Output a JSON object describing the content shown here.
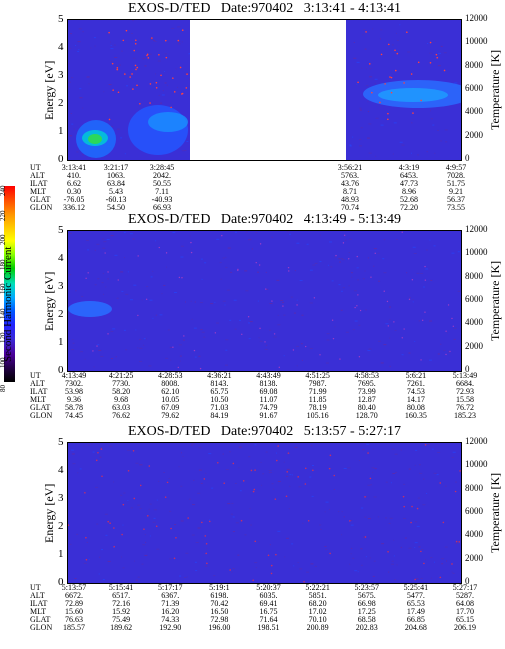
{
  "colorbar": {
    "label": "Second Harmonic Current",
    "ticks": [
      "240",
      "220",
      "200",
      "180",
      "160",
      "140",
      "120",
      "100",
      "80"
    ],
    "colors": [
      "#ff0000",
      "#ff5500",
      "#ff9900",
      "#ffd000",
      "#ffff00",
      "#88ff00",
      "#00cc00",
      "#00ddbb",
      "#00aaff",
      "#0055ff",
      "#2222ff",
      "#3a2ad8",
      "#4b0099",
      "#220044",
      "#000000"
    ]
  },
  "panels": [
    {
      "title": "EXOS-D/TED   Date:970402   3:13:41 - 4:13:41",
      "ylabel_left": "Energy [eV]",
      "ylabel_right": "Temperature [K]",
      "yticks_left": [
        "5",
        "4",
        "3",
        "2",
        "1",
        "0"
      ],
      "yticks_right": [
        "12000",
        "10000",
        "8000",
        "6000",
        "4000",
        "2000",
        "0"
      ],
      "ephem_labels": [
        "UT",
        "ALT",
        "ILAT",
        "MLT",
        "GLAT",
        "GLON"
      ],
      "columns": [
        {
          "UT": "3:13:41",
          "ALT": "410.",
          "ILAT": "6.62",
          "MLT": "0.30",
          "GLAT": "-76.05",
          "GLON": "336.12"
        },
        {
          "UT": "3:21:17",
          "ALT": "1063.",
          "ILAT": "63.84",
          "MLT": "5.43",
          "GLAT": "-60.13",
          "GLON": "54.50"
        },
        {
          "UT": "3:28:45",
          "ALT": "2042.",
          "ILAT": "50.55",
          "MLT": "7.11",
          "GLAT": "-40.93",
          "GLON": "66.93"
        },
        {
          "UT": "3:56:21",
          "ALT": "5763.",
          "ILAT": "43.76",
          "MLT": "8.71",
          "GLAT": "48.93",
          "GLON": "70.74"
        },
        {
          "UT": "4:3:19",
          "ALT": "6453.",
          "ILAT": "47.73",
          "MLT": "8.96",
          "GLAT": "52.68",
          "GLON": "72.20"
        },
        {
          "UT": "4:9:57",
          "ALT": "7028.",
          "ILAT": "51.75",
          "MLT": "9.21",
          "GLAT": "56.37",
          "GLON": "73.55"
        }
      ]
    },
    {
      "title": "EXOS-D/TED   Date:970402   4:13:49 - 5:13:49",
      "ylabel_left": "Energy [eV]",
      "ylabel_right": "Temperature [K]",
      "yticks_left": [
        "5",
        "4",
        "3",
        "2",
        "1",
        "0"
      ],
      "yticks_right": [
        "12000",
        "10000",
        "8000",
        "6000",
        "4000",
        "2000",
        "0"
      ],
      "ephem_labels": [
        "UT",
        "ALT",
        "ILAT",
        "MLT",
        "GLAT",
        "GLON"
      ],
      "columns": [
        {
          "UT": "4:13:49",
          "ALT": "7302.",
          "ILAT": "53.98",
          "MLT": "9.36",
          "GLAT": "58.78",
          "GLON": "74.45"
        },
        {
          "UT": "4:21:25",
          "ALT": "7730.",
          "ILAT": "58.20",
          "MLT": "9.68",
          "GLAT": "63.03",
          "GLON": "76.62"
        },
        {
          "UT": "4:28:53",
          "ALT": "8008.",
          "ILAT": "62.10",
          "MLT": "10.05",
          "GLAT": "67.09",
          "GLON": "79.62"
        },
        {
          "UT": "4:36:21",
          "ALT": "8143.",
          "ILAT": "65.75",
          "MLT": "10.50",
          "GLAT": "71.03",
          "GLON": "84.19"
        },
        {
          "UT": "4:43:49",
          "ALT": "8138.",
          "ILAT": "69.08",
          "MLT": "11.07",
          "GLAT": "74.79",
          "GLON": "91.67"
        },
        {
          "UT": "4:51:25",
          "ALT": "7987.",
          "ILAT": "71.99",
          "MLT": "11.85",
          "GLAT": "78.19",
          "GLON": "105.16"
        },
        {
          "UT": "4:58:53",
          "ALT": "7695.",
          "ILAT": "73.99",
          "MLT": "12.87",
          "GLAT": "80.40",
          "GLON": "128.70"
        },
        {
          "UT": "5:6:21",
          "ALT": "7261.",
          "ILAT": "74.53",
          "MLT": "14.17",
          "GLAT": "80.08",
          "GLON": "160.35"
        },
        {
          "UT": "5:13:49",
          "ALT": "6684.",
          "ILAT": "72.93",
          "MLT": "15.58",
          "GLAT": "76.72",
          "GLON": "185.23"
        }
      ]
    },
    {
      "title": "EXOS-D/TED   Date:970402   5:13:57 - 5:27:17",
      "ylabel_left": "Energy [eV]",
      "ylabel_right": "Temperature [K]",
      "yticks_left": [
        "5",
        "4",
        "3",
        "2",
        "1",
        "0"
      ],
      "yticks_right": [
        "12000",
        "10000",
        "8000",
        "6000",
        "4000",
        "2000",
        "0"
      ],
      "ephem_labels": [
        "UT",
        "ALT",
        "ILAT",
        "MLT",
        "GLAT",
        "GLON"
      ],
      "columns": [
        {
          "UT": "5:13:57",
          "ALT": "6672.",
          "ILAT": "72.89",
          "MLT": "15.60",
          "GLAT": "76.63",
          "GLON": "185.57"
        },
        {
          "UT": "5:15:41",
          "ALT": "6517.",
          "ILAT": "72.16",
          "MLT": "15.92",
          "GLAT": "75.49",
          "GLON": "189.62"
        },
        {
          "UT": "5:17:17",
          "ALT": "6367.",
          "ILAT": "71.39",
          "MLT": "16.20",
          "GLAT": "74.33",
          "GLON": "192.90"
        },
        {
          "UT": "5:19:1",
          "ALT": "6198.",
          "ILAT": "70.42",
          "MLT": "16.50",
          "GLAT": "72.98",
          "GLON": "196.00"
        },
        {
          "UT": "5:20:37",
          "ALT": "6035.",
          "ILAT": "69.41",
          "MLT": "16.75",
          "GLAT": "71.64",
          "GLON": "198.51"
        },
        {
          "UT": "5:22:21",
          "ALT": "5851.",
          "ILAT": "68.20",
          "MLT": "17.02",
          "GLAT": "70.10",
          "GLON": "200.89"
        },
        {
          "UT": "5:23:57",
          "ALT": "5675.",
          "ILAT": "66.98",
          "MLT": "17.25",
          "GLAT": "68.58",
          "GLON": "202.83"
        },
        {
          "UT": "5:25:41",
          "ALT": "5477.",
          "ILAT": "65.53",
          "MLT": "17.49",
          "GLAT": "66.85",
          "GLON": "204.68"
        },
        {
          "UT": "5:27:17",
          "ALT": "5287.",
          "ILAT": "64.08",
          "MLT": "17.70",
          "GLAT": "65.15",
          "GLON": "206.19"
        }
      ]
    }
  ],
  "chart_data": [
    {
      "type": "heatmap",
      "title": "EXOS-D/TED   Date:970402   3:13:41 - 4:13:41",
      "xlabel": "",
      "ylabel": "Energy [eV]",
      "y2label": "Temperature [K]",
      "ylim": [
        0,
        5
      ],
      "y2lim": [
        0,
        12000
      ],
      "x_ticks": [
        "3:13:41",
        "3:21:17",
        "3:28:45",
        "3:56:21",
        "4:3:19",
        "4:9:57"
      ],
      "data_gap": [
        "3:28:45",
        "3:56:21"
      ],
      "colorbar_label": "Second Harmonic Current",
      "colorbar_range": [
        80,
        240
      ]
    },
    {
      "type": "heatmap",
      "title": "EXOS-D/TED   Date:970402   4:13:49 - 5:13:49",
      "xlabel": "",
      "ylabel": "Energy [eV]",
      "y2label": "Temperature [K]",
      "ylim": [
        0,
        5
      ],
      "y2lim": [
        0,
        12000
      ],
      "x_ticks": [
        "4:13:49",
        "4:21:25",
        "4:28:53",
        "4:36:21",
        "4:43:49",
        "4:51:25",
        "4:58:53",
        "5:6:21",
        "5:13:49"
      ]
    },
    {
      "type": "heatmap",
      "title": "EXOS-D/TED   Date:970402   5:13:57 - 5:27:17",
      "xlabel": "",
      "ylabel": "Energy [eV]",
      "y2label": "Temperature [K]",
      "ylim": [
        0,
        5
      ],
      "y2lim": [
        0,
        12000
      ],
      "x_ticks": [
        "5:13:57",
        "5:15:41",
        "5:17:17",
        "5:19:1",
        "5:20:37",
        "5:22:21",
        "5:23:57",
        "5:25:41",
        "5:27:17"
      ]
    }
  ]
}
